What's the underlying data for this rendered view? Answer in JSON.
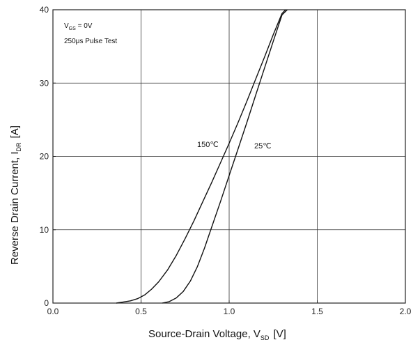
{
  "chart_data": {
    "type": "line",
    "title": "",
    "xlabel": {
      "main": "Source-Drain Voltage, V",
      "sub": "SD",
      "unit": "[V]"
    },
    "ylabel": {
      "main": "Reverse Drain Current, I",
      "sub": "DR",
      "unit": "[A]"
    },
    "xlim": [
      0.0,
      2.0
    ],
    "ylim": [
      0,
      40
    ],
    "xticks": [
      "0.0",
      "0.5",
      "1.0",
      "1.5",
      "2.0"
    ],
    "yticks": [
      "0",
      "10",
      "20",
      "30",
      "40"
    ],
    "grid": true,
    "annotations": {
      "condition_1_main": "V",
      "condition_1_sub": "GS",
      "condition_1_value": " = 0V",
      "condition_2": "250μs Pulse Test"
    },
    "series": [
      {
        "name": "150°C",
        "label": "150℃",
        "x": [
          0.36,
          0.4,
          0.44,
          0.48,
          0.52,
          0.56,
          0.6,
          0.65,
          0.7,
          0.75,
          0.8,
          0.85,
          0.9,
          0.95,
          1.0,
          1.05,
          1.1,
          1.15,
          1.2,
          1.25,
          1.3,
          1.32
        ],
        "y": [
          0,
          0.15,
          0.3,
          0.6,
          1.1,
          1.9,
          2.9,
          4.5,
          6.5,
          8.8,
          11.2,
          13.8,
          16.4,
          19.1,
          21.8,
          24.6,
          27.5,
          30.5,
          33.5,
          36.6,
          39.5,
          40
        ]
      },
      {
        "name": "25°C",
        "label": "25℃",
        "x": [
          0.62,
          0.66,
          0.7,
          0.74,
          0.78,
          0.82,
          0.86,
          0.9,
          0.95,
          1.0,
          1.05,
          1.1,
          1.15,
          1.2,
          1.25,
          1.3,
          1.33
        ],
        "y": [
          0,
          0.2,
          0.7,
          1.6,
          3.0,
          5.0,
          7.5,
          10.3,
          13.8,
          17.4,
          21.0,
          24.6,
          28.3,
          32.0,
          35.7,
          39.3,
          40
        ]
      }
    ]
  }
}
